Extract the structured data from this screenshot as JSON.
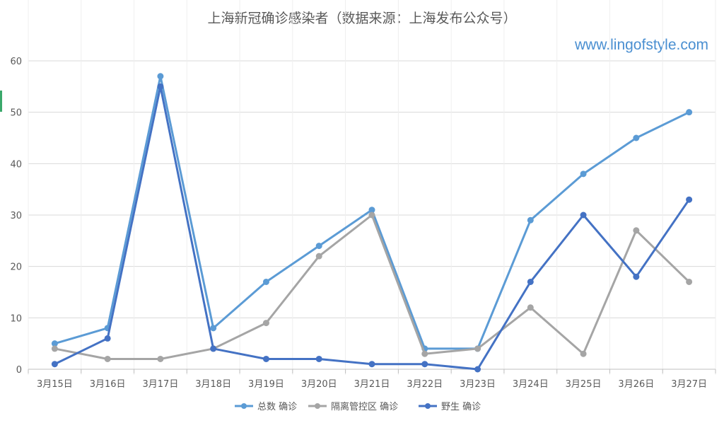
{
  "page": {
    "watermark": "www.lingofstyle.com",
    "watermark_color": "#4a8fd1"
  },
  "chart_data": {
    "type": "line",
    "title": "上海新冠确诊感染者（数据来源：上海发布公众号）",
    "xlabel": "",
    "ylabel": "",
    "categories": [
      "3月15日",
      "3月16日",
      "3月17日",
      "3月18日",
      "3月19日",
      "3月20日",
      "3月21日",
      "3月22日",
      "3月23日",
      "3月24日",
      "3月25日",
      "3月26日",
      "3月27日"
    ],
    "ylim": [
      0,
      60
    ],
    "yticks": [
      0,
      10,
      20,
      30,
      40,
      50,
      60
    ],
    "grid": true,
    "legend_position": "bottom",
    "series": [
      {
        "name": "总数 确诊",
        "color": "#5b9bd5",
        "values": [
          5,
          8,
          57,
          8,
          17,
          24,
          31,
          4,
          4,
          29,
          38,
          45,
          50
        ]
      },
      {
        "name": "隔离管控区 确诊",
        "color": "#a5a5a5",
        "values": [
          4,
          2,
          2,
          4,
          9,
          22,
          30,
          3,
          4,
          12,
          3,
          27,
          17
        ]
      },
      {
        "name": "野生 确诊",
        "color": "#4472c4",
        "values": [
          1,
          6,
          55,
          4,
          2,
          2,
          1,
          1,
          0,
          17,
          30,
          18,
          33
        ]
      }
    ]
  }
}
